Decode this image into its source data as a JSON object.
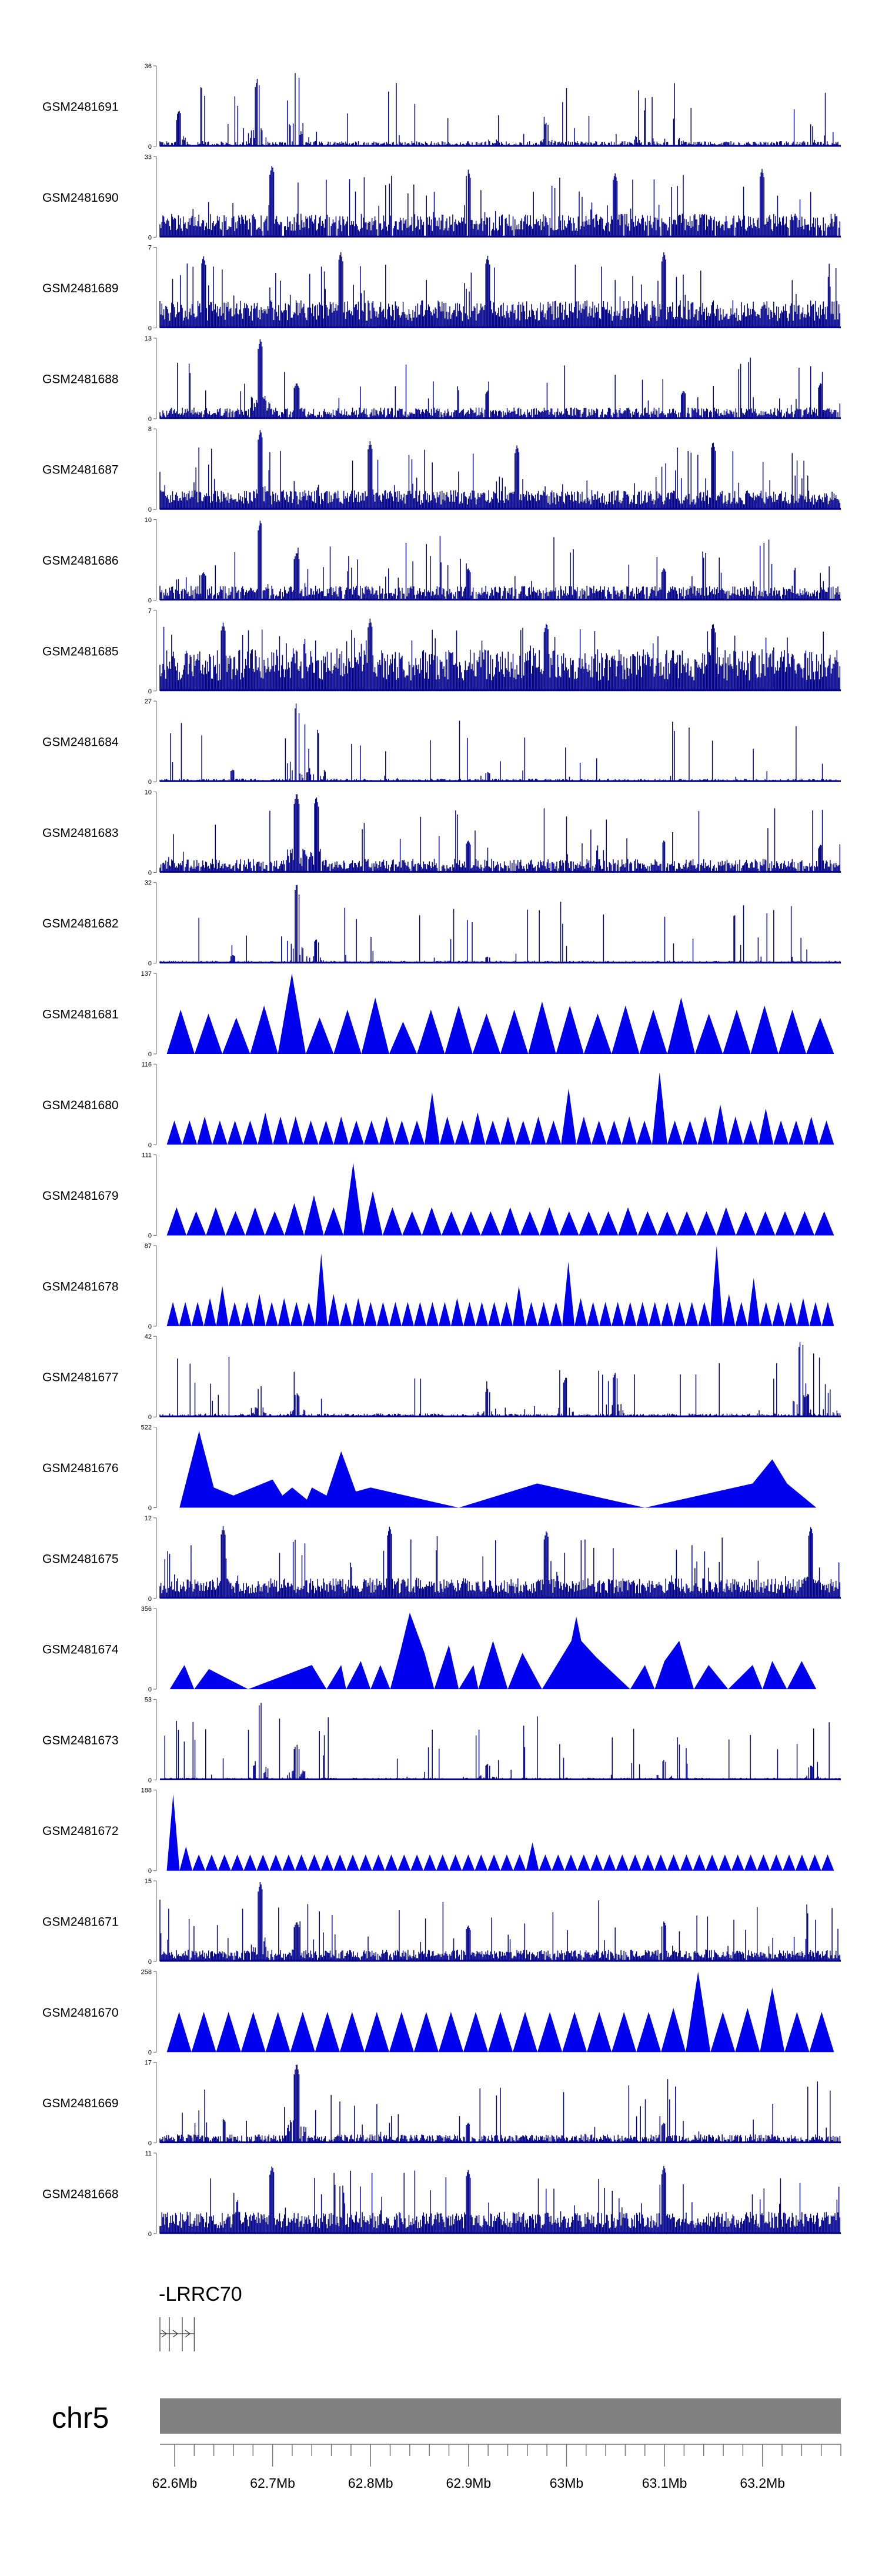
{
  "chart_data": {
    "type": "area",
    "title": "",
    "xlabel": "",
    "ylabel": "",
    "chromosome": "chr5",
    "xlim_mb": [
      62.585,
      63.28
    ],
    "x_ticks": [
      "62.6Mb",
      "62.7Mb",
      "62.8Mb",
      "62.9Mb",
      "63Mb",
      "63.1Mb",
      "63.2Mb"
    ],
    "x_tick_values_mb": [
      62.6,
      62.7,
      62.8,
      62.9,
      63.0,
      63.1,
      63.2
    ],
    "gene": {
      "name": "-LRRC70",
      "start_mb": 62.585,
      "end_mb": 62.62
    },
    "tracks": [
      {
        "name": "GSM2481691",
        "ymax": 36,
        "style": "bars",
        "baseline": 2,
        "density": 0.55,
        "peaks": [
          [
            62.685,
            0.85
          ],
          [
            62.725,
            1.0
          ],
          [
            62.98,
            0.3
          ],
          [
            63.08,
            0.45
          ],
          [
            63.11,
            0.35
          ],
          [
            63.25,
            0.28
          ],
          [
            62.605,
            0.45
          ]
        ]
      },
      {
        "name": "GSM2481690",
        "ymax": 33,
        "style": "bars",
        "baseline": 8,
        "density": 0.75,
        "peaks": [
          [
            62.7,
            0.9
          ],
          [
            62.9,
            0.85
          ],
          [
            63.05,
            0.8
          ],
          [
            63.2,
            0.85
          ]
        ]
      },
      {
        "name": "GSM2481689",
        "ymax": 7,
        "style": "bars",
        "baseline": 2,
        "density": 0.8,
        "peaks": [
          [
            62.63,
            0.9
          ],
          [
            62.77,
            0.95
          ],
          [
            62.92,
            0.9
          ],
          [
            63.1,
            0.95
          ]
        ]
      },
      {
        "name": "GSM2481688",
        "ymax": 13,
        "style": "bars",
        "baseline": 1.5,
        "density": 0.7,
        "peaks": [
          [
            62.688,
            1.0
          ],
          [
            62.725,
            0.45
          ],
          [
            62.92,
            0.35
          ],
          [
            63.12,
            0.35
          ],
          [
            63.26,
            0.45
          ]
        ]
      },
      {
        "name": "GSM2481687",
        "ymax": 8,
        "style": "bars",
        "baseline": 1.6,
        "density": 0.8,
        "peaks": [
          [
            62.688,
            1.0
          ],
          [
            62.8,
            0.85
          ],
          [
            62.95,
            0.8
          ],
          [
            63.15,
            0.85
          ]
        ]
      },
      {
        "name": "GSM2481686",
        "ymax": 10,
        "style": "bars",
        "baseline": 1.5,
        "density": 0.7,
        "peaks": [
          [
            62.688,
            1.0
          ],
          [
            62.725,
            0.6
          ],
          [
            62.63,
            0.35
          ],
          [
            62.9,
            0.4
          ],
          [
            63.1,
            0.4
          ]
        ]
      },
      {
        "name": "GSM2481685",
        "ymax": 7,
        "style": "bars",
        "baseline": 3,
        "density": 0.85,
        "peaks": [
          [
            62.65,
            0.85
          ],
          [
            62.8,
            0.9
          ],
          [
            62.98,
            0.85
          ],
          [
            63.15,
            0.85
          ]
        ]
      },
      {
        "name": "GSM2481684",
        "ymax": 27,
        "style": "bars",
        "baseline": 0.8,
        "density": 0.55,
        "peaks": [
          [
            62.725,
            1.0
          ],
          [
            62.745,
            0.7
          ],
          [
            62.66,
            0.15
          ],
          [
            62.92,
            0.12
          ]
        ]
      },
      {
        "name": "GSM2481683",
        "ymax": 10,
        "style": "bars",
        "baseline": 1.4,
        "density": 0.7,
        "peaks": [
          [
            62.725,
            1.0
          ],
          [
            62.745,
            0.95
          ],
          [
            62.9,
            0.4
          ],
          [
            63.1,
            0.4
          ],
          [
            63.26,
            0.35
          ]
        ]
      },
      {
        "name": "GSM2481682",
        "ymax": 32,
        "style": "bars",
        "baseline": 0.8,
        "density": 0.55,
        "peaks": [
          [
            62.725,
            1.0
          ],
          [
            62.745,
            0.3
          ],
          [
            62.66,
            0.1
          ],
          [
            62.92,
            0.08
          ]
        ]
      },
      {
        "name": "GSM2481681",
        "ymax": 137,
        "style": "spikes",
        "y_fracs": [
          0.55,
          0.5,
          0.45,
          0.6,
          1.0,
          0.45,
          0.55,
          0.7,
          0.4,
          0.55,
          0.6,
          0.5,
          0.55,
          0.65,
          0.6,
          0.5,
          0.6,
          0.55,
          0.7,
          0.5,
          0.55,
          0.6,
          0.55,
          0.45
        ]
      },
      {
        "name": "GSM2481680",
        "ymax": 116,
        "style": "spikes",
        "y_fracs": [
          0.3,
          0.3,
          0.35,
          0.3,
          0.3,
          0.3,
          0.4,
          0.35,
          0.35,
          0.3,
          0.3,
          0.35,
          0.3,
          0.3,
          0.35,
          0.3,
          0.3,
          0.65,
          0.35,
          0.3,
          0.4,
          0.3,
          0.35,
          0.3,
          0.35,
          0.3,
          0.7,
          0.35,
          0.3,
          0.3,
          0.35,
          0.3,
          0.9,
          0.3,
          0.3,
          0.35,
          0.5,
          0.35,
          0.3,
          0.45,
          0.3,
          0.3,
          0.35,
          0.3
        ]
      },
      {
        "name": "GSM2481679",
        "ymax": 111,
        "style": "spikes",
        "y_fracs": [
          0.35,
          0.3,
          0.35,
          0.3,
          0.35,
          0.3,
          0.4,
          0.5,
          0.35,
          0.9,
          0.55,
          0.35,
          0.3,
          0.35,
          0.3,
          0.3,
          0.3,
          0.35,
          0.3,
          0.35,
          0.3,
          0.3,
          0.3,
          0.35,
          0.3,
          0.3,
          0.3,
          0.3,
          0.35,
          0.3,
          0.3,
          0.3,
          0.3,
          0.3
        ]
      },
      {
        "name": "GSM2481678",
        "ymax": 87,
        "style": "spikes",
        "y_fracs": [
          0.3,
          0.3,
          0.3,
          0.35,
          0.5,
          0.3,
          0.3,
          0.4,
          0.3,
          0.35,
          0.3,
          0.3,
          0.9,
          0.4,
          0.3,
          0.35,
          0.3,
          0.3,
          0.3,
          0.3,
          0.3,
          0.3,
          0.3,
          0.35,
          0.3,
          0.3,
          0.3,
          0.3,
          0.5,
          0.3,
          0.3,
          0.3,
          0.8,
          0.35,
          0.3,
          0.3,
          0.3,
          0.3,
          0.3,
          0.3,
          0.3,
          0.3,
          0.3,
          0.3,
          1.0,
          0.4,
          0.3,
          0.6,
          0.3,
          0.3,
          0.3,
          0.35,
          0.3,
          0.3
        ]
      },
      {
        "name": "GSM2481677",
        "ymax": 42,
        "style": "bars",
        "baseline": 1.5,
        "density": 0.5,
        "peaks": [
          [
            62.688,
            0.4
          ],
          [
            62.725,
            0.3
          ],
          [
            62.92,
            0.35
          ],
          [
            63.0,
            0.5
          ],
          [
            63.05,
            0.55
          ],
          [
            63.24,
            1.0
          ],
          [
            63.27,
            0.35
          ]
        ]
      },
      {
        "name": "GSM2481676",
        "ymax": 522,
        "style": "triangles",
        "points": [
          [
            62.605,
            0.0
          ],
          [
            62.625,
            0.95
          ],
          [
            62.64,
            0.25
          ],
          [
            62.66,
            0.15
          ],
          [
            62.68,
            0.25
          ],
          [
            62.7,
            0.35
          ],
          [
            62.71,
            0.15
          ],
          [
            62.72,
            0.25
          ],
          [
            62.735,
            0.1
          ],
          [
            62.74,
            0.25
          ],
          [
            62.755,
            0.15
          ],
          [
            62.77,
            0.7
          ],
          [
            62.785,
            0.2
          ],
          [
            62.8,
            0.25
          ],
          [
            62.89,
            0.0
          ],
          [
            62.97,
            0.3
          ],
          [
            63.08,
            0.0
          ],
          [
            63.19,
            0.3
          ],
          [
            63.21,
            0.6
          ],
          [
            63.225,
            0.3
          ],
          [
            63.255,
            0.0
          ]
        ]
      },
      {
        "name": "GSM2481675",
        "ymax": 12,
        "style": "bars",
        "baseline": 2.5,
        "density": 0.8,
        "peaks": [
          [
            62.65,
            0.9
          ],
          [
            62.82,
            0.9
          ],
          [
            62.98,
            0.85
          ],
          [
            63.25,
            0.9
          ]
        ]
      },
      {
        "name": "GSM2481674",
        "ymax": 356,
        "style": "triangles",
        "points": [
          [
            62.595,
            0.0
          ],
          [
            62.61,
            0.3
          ],
          [
            62.62,
            0.0
          ],
          [
            62.635,
            0.25
          ],
          [
            62.675,
            0.0
          ],
          [
            62.74,
            0.3
          ],
          [
            62.755,
            0.0
          ],
          [
            62.77,
            0.3
          ],
          [
            62.775,
            0.0
          ],
          [
            62.79,
            0.35
          ],
          [
            62.8,
            0.0
          ],
          [
            62.81,
            0.3
          ],
          [
            62.82,
            0.0
          ],
          [
            62.83,
            0.45
          ],
          [
            62.84,
            0.95
          ],
          [
            62.855,
            0.45
          ],
          [
            62.865,
            0.0
          ],
          [
            62.88,
            0.55
          ],
          [
            62.89,
            0.0
          ],
          [
            62.905,
            0.3
          ],
          [
            62.91,
            0.0
          ],
          [
            62.925,
            0.6
          ],
          [
            62.94,
            0.0
          ],
          [
            62.955,
            0.45
          ],
          [
            62.975,
            0.0
          ],
          [
            62.99,
            0.3
          ],
          [
            63.005,
            0.6
          ],
          [
            63.01,
            0.9
          ],
          [
            63.015,
            0.6
          ],
          [
            63.03,
            0.4
          ],
          [
            63.065,
            0.0
          ],
          [
            63.08,
            0.3
          ],
          [
            63.09,
            0.0
          ],
          [
            63.1,
            0.35
          ],
          [
            63.115,
            0.6
          ],
          [
            63.13,
            0.0
          ],
          [
            63.145,
            0.3
          ],
          [
            63.165,
            0.0
          ],
          [
            63.19,
            0.3
          ],
          [
            63.2,
            0.0
          ],
          [
            63.21,
            0.35
          ],
          [
            63.225,
            0.0
          ],
          [
            63.24,
            0.35
          ],
          [
            63.255,
            0.0
          ]
        ]
      },
      {
        "name": "GSM2481673",
        "ymax": 53,
        "style": "bars",
        "baseline": 1.2,
        "density": 0.55,
        "peaks": [
          [
            62.688,
            1.0
          ],
          [
            62.725,
            0.45
          ],
          [
            62.92,
            0.2
          ],
          [
            63.1,
            0.25
          ],
          [
            63.25,
            0.18
          ]
        ]
      },
      {
        "name": "GSM2481672",
        "ymax": 188,
        "style": "spikes",
        "y_fracs": [
          0.95,
          0.3,
          0.2,
          0.2,
          0.2,
          0.2,
          0.2,
          0.2,
          0.2,
          0.2,
          0.2,
          0.2,
          0.2,
          0.2,
          0.2,
          0.2,
          0.2,
          0.2,
          0.2,
          0.2,
          0.2,
          0.2,
          0.2,
          0.2,
          0.2,
          0.2,
          0.2,
          0.2,
          0.35,
          0.2,
          0.2,
          0.2,
          0.2,
          0.2,
          0.2,
          0.2,
          0.2,
          0.2,
          0.2,
          0.2,
          0.2,
          0.2,
          0.2,
          0.2,
          0.2,
          0.2,
          0.2,
          0.2,
          0.2,
          0.2,
          0.2,
          0.2
        ]
      },
      {
        "name": "GSM2481671",
        "ymax": 15,
        "style": "bars",
        "baseline": 1.8,
        "density": 0.75,
        "peaks": [
          [
            62.688,
            1.0
          ],
          [
            62.725,
            0.5
          ],
          [
            62.9,
            0.45
          ],
          [
            63.1,
            0.5
          ]
        ]
      },
      {
        "name": "GSM2481670",
        "ymax": 258,
        "style": "spikes",
        "y_fracs": [
          0.5,
          0.5,
          0.5,
          0.5,
          0.5,
          0.5,
          0.5,
          0.5,
          0.5,
          0.5,
          0.5,
          0.5,
          0.5,
          0.5,
          0.5,
          0.5,
          0.5,
          0.5,
          0.5,
          0.5,
          0.55,
          1.0,
          0.5,
          0.55,
          0.8,
          0.5,
          0.5
        ]
      },
      {
        "name": "GSM2481669",
        "ymax": 17,
        "style": "bars",
        "baseline": 1.5,
        "density": 0.65,
        "peaks": [
          [
            62.725,
            1.0
          ],
          [
            62.65,
            0.3
          ],
          [
            62.9,
            0.25
          ],
          [
            63.1,
            0.25
          ]
        ]
      },
      {
        "name": "GSM2481668",
        "ymax": 11,
        "style": "bars",
        "baseline": 2.5,
        "density": 0.8,
        "peaks": [
          [
            62.7,
            0.85
          ],
          [
            62.9,
            0.8
          ],
          [
            63.1,
            0.85
          ]
        ]
      }
    ]
  },
  "colors": {
    "signal": "#0000ee",
    "bars_dark": "#00008b",
    "ideogram": "#808080",
    "axis": "#666666",
    "text": "#000000"
  }
}
